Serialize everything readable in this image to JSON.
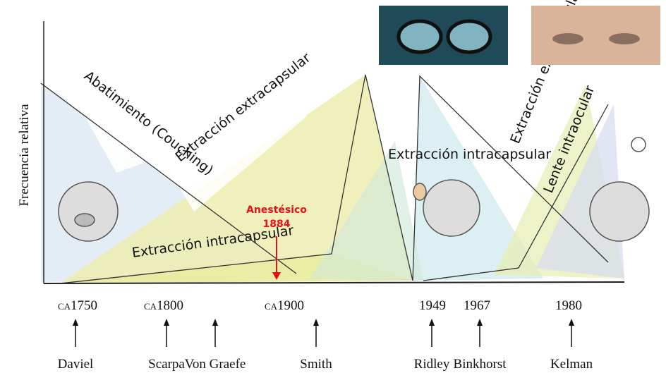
{
  "axis": {
    "y_label": "Frecuencia relativa"
  },
  "regions": [
    {
      "label": "Abatimiento (Couching)"
    },
    {
      "label": "Extracción extracapsular"
    },
    {
      "label": "Extracción intracapsular"
    },
    {
      "label": "Extracción intracapsular"
    },
    {
      "label": "Extracción extracapsular"
    },
    {
      "label": "Lente intraocular"
    }
  ],
  "annotation": {
    "line1": "Anestésico",
    "line2": "1884"
  },
  "timeline": {
    "dates": [
      "ca1750",
      "ca1800",
      "ca1900",
      "1949",
      "1967",
      "1980"
    ],
    "people": [
      "Daviel",
      "Scarpa",
      "Von Graefe",
      "Smith",
      "Ridley",
      "Binkhorst",
      "Kelman"
    ]
  }
}
